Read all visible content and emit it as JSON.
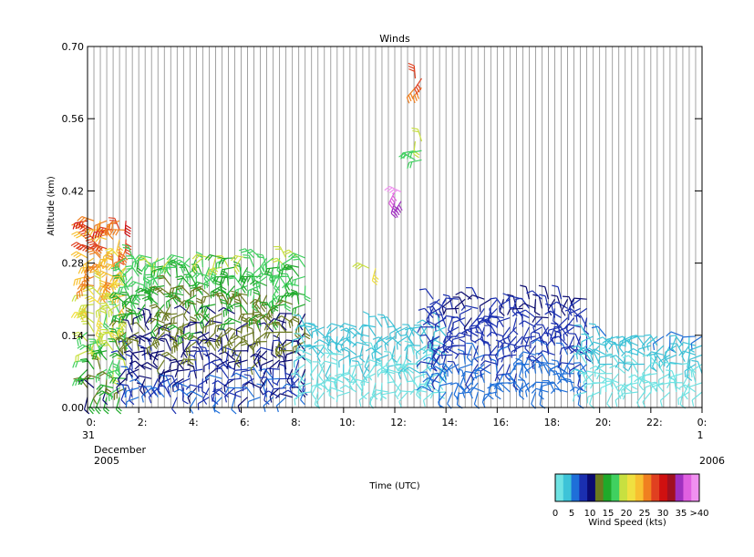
{
  "chart_data": {
    "type": "scatter",
    "title": "Winds",
    "xlabel": "Time (UTC)",
    "ylabel": "Altitude (km)",
    "xlim": [
      0,
      24
    ],
    "ylim": [
      0.0,
      0.7
    ],
    "y_ticks": [
      "0.00",
      "0.14",
      "0.28",
      "0.42",
      "0.56",
      "0.70"
    ],
    "y_tick_values": [
      0.0,
      0.14,
      0.28,
      0.42,
      0.56,
      0.7
    ],
    "x_ticks": [
      "0:",
      "2:",
      "4:",
      "6:",
      "8:",
      "10:",
      "12:",
      "14:",
      "16:",
      "18:",
      "20:",
      "22:",
      "0:"
    ],
    "x_tick_values": [
      0,
      2,
      4,
      6,
      8,
      10,
      12,
      14,
      16,
      18,
      20,
      22,
      24
    ],
    "date_start": {
      "day": "31",
      "month": "December",
      "year": "2005"
    },
    "date_end": {
      "day": "1",
      "year": "2006"
    },
    "grid": "vertical lines every 15 min",
    "colorbar": {
      "title": "Wind Speed (kts)",
      "tick_labels": [
        "0",
        "5",
        "10",
        "15",
        "20",
        "25",
        "30",
        "35",
        ">40"
      ],
      "colors": [
        "#6fe3e3",
        "#3dc3d8",
        "#1e6fd9",
        "#1a2fb0",
        "#0a0a70",
        "#6b7a1f",
        "#1faa2a",
        "#40d060",
        "#c8e040",
        "#f0e040",
        "#f8c030",
        "#f08020",
        "#e04020",
        "#d01010",
        "#a01020",
        "#a030c0",
        "#e060e0",
        "#f090f0"
      ]
    },
    "wind_barbs_summary": [
      {
        "time_range": [
          0,
          1.5
        ],
        "altitude_range": [
          0.02,
          0.37
        ],
        "speed_range_kts": [
          10,
          32
        ]
      },
      {
        "time_range": [
          1.5,
          8.5
        ],
        "altitude_range": [
          0.02,
          0.3
        ],
        "speed_range_kts": [
          5,
          20
        ]
      },
      {
        "time_range": [
          8.5,
          14
        ],
        "altitude_range": [
          0.03,
          0.17
        ],
        "speed_range_kts": [
          0,
          5
        ]
      },
      {
        "time_range": [
          13.5,
          19.5
        ],
        "altitude_range": [
          0.03,
          0.21
        ],
        "speed_range_kts": [
          5,
          10
        ]
      },
      {
        "time_range": [
          19.5,
          24
        ],
        "altitude_range": [
          0.03,
          0.14
        ],
        "speed_range_kts": [
          0,
          5
        ]
      },
      {
        "time_range": [
          11,
          11.3
        ],
        "altitude_range": [
          0.27,
          0.28
        ],
        "speed_range_kts": [
          20,
          25
        ]
      },
      {
        "time_range": [
          12,
          12.3
        ],
        "altitude_range": [
          0.4,
          0.42
        ],
        "speed_range_kts": [
          35,
          40
        ]
      },
      {
        "time_range": [
          12.8,
          13.1
        ],
        "altitude_range": [
          0.48,
          0.52
        ],
        "speed_range_kts": [
          15,
          20
        ]
      },
      {
        "time_range": [
          12.8,
          13.1
        ],
        "altitude_range": [
          0.62,
          0.65
        ],
        "speed_range_kts": [
          25,
          30
        ]
      }
    ]
  }
}
